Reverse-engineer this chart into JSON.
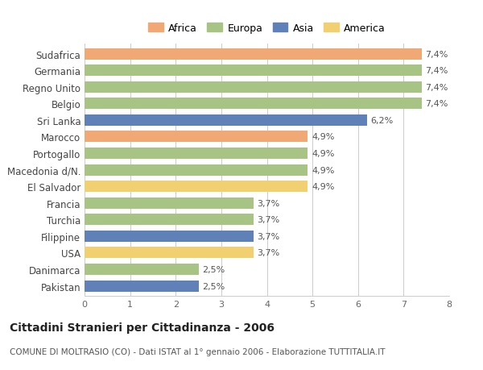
{
  "categories": [
    "Sudafrica",
    "Germania",
    "Regno Unito",
    "Belgio",
    "Sri Lanka",
    "Marocco",
    "Portogallo",
    "Macedonia d/N.",
    "El Salvador",
    "Francia",
    "Turchia",
    "Filippine",
    "USA",
    "Danimarca",
    "Pakistan"
  ],
  "values": [
    7.4,
    7.4,
    7.4,
    7.4,
    6.2,
    4.9,
    4.9,
    4.9,
    4.9,
    3.7,
    3.7,
    3.7,
    3.7,
    2.5,
    2.5
  ],
  "labels": [
    "7,4%",
    "7,4%",
    "7,4%",
    "7,4%",
    "6,2%",
    "4,9%",
    "4,9%",
    "4,9%",
    "4,9%",
    "3,7%",
    "3,7%",
    "3,7%",
    "3,7%",
    "2,5%",
    "2,5%"
  ],
  "continents": [
    "Africa",
    "Europa",
    "Europa",
    "Europa",
    "Asia",
    "Africa",
    "Europa",
    "Europa",
    "America",
    "Europa",
    "Europa",
    "Asia",
    "America",
    "Europa",
    "Asia"
  ],
  "colors": {
    "Africa": "#F0A875",
    "Europa": "#A8C484",
    "Asia": "#6080B8",
    "America": "#F0D070"
  },
  "legend_order": [
    "Africa",
    "Europa",
    "Asia",
    "America"
  ],
  "xlim": [
    0,
    8
  ],
  "xticks": [
    0,
    1,
    2,
    3,
    4,
    5,
    6,
    7,
    8
  ],
  "title": "Cittadini Stranieri per Cittadinanza - 2006",
  "subtitle": "COMUNE DI MOLTRASIO (CO) - Dati ISTAT al 1° gennaio 2006 - Elaborazione TUTTITALIA.IT",
  "background_color": "#ffffff",
  "bar_height": 0.68,
  "label_fontsize": 8,
  "ytick_fontsize": 8.5,
  "xtick_fontsize": 8,
  "title_fontsize": 10,
  "subtitle_fontsize": 7.5,
  "legend_fontsize": 9
}
